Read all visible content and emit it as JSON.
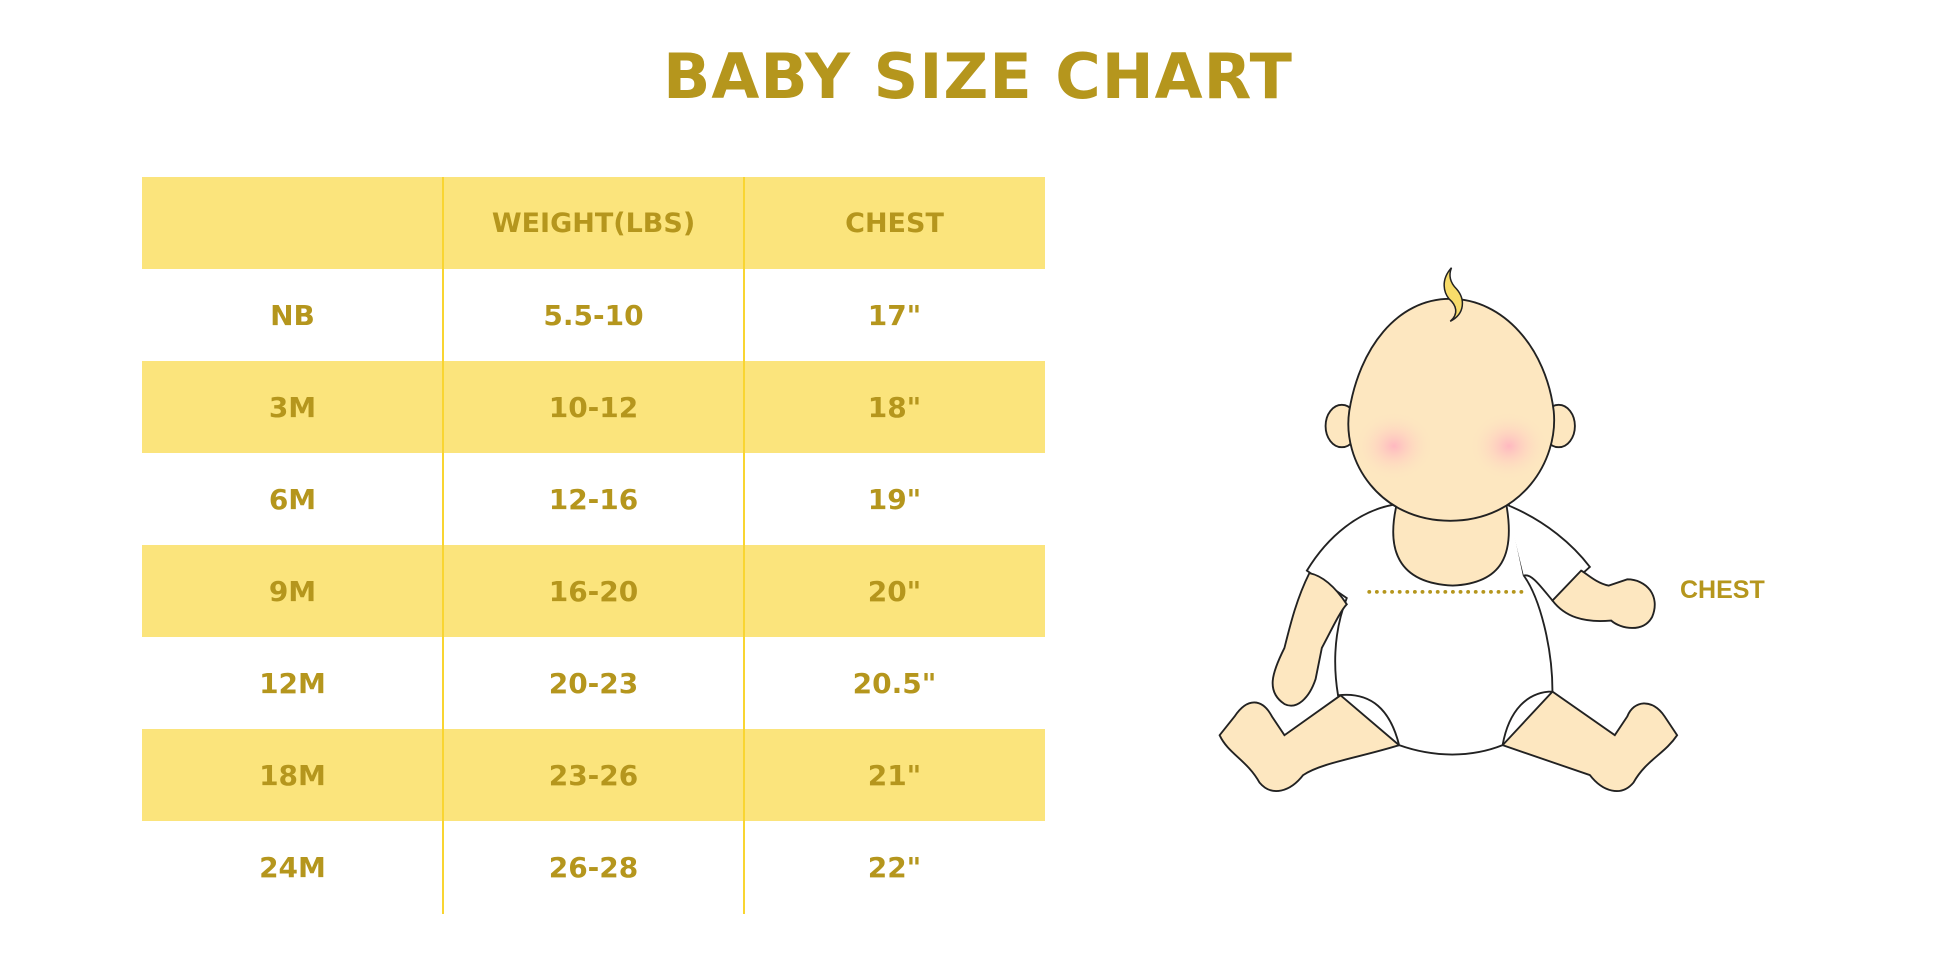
{
  "title": "BABY SIZE CHART",
  "table": {
    "headers": [
      "",
      "WEIGHT(LBS)",
      "CHEST"
    ],
    "rows": [
      [
        "NB",
        "5.5-10",
        "17\""
      ],
      [
        "3M",
        "10-12",
        "18\""
      ],
      [
        "6M",
        "12-16",
        "19\""
      ],
      [
        "9M",
        "16-20",
        "20\""
      ],
      [
        "12M",
        "20-23",
        "20.5\""
      ],
      [
        "18M",
        "23-26",
        "21\""
      ],
      [
        "24M",
        "26-28",
        "22\""
      ]
    ]
  },
  "illustration": {
    "chest_label": "CHEST"
  },
  "colors": {
    "accent_text": "#B5961D",
    "row_fill": "#FBE47C",
    "divider": "#F9D531",
    "skin": "#FDE7C0"
  }
}
